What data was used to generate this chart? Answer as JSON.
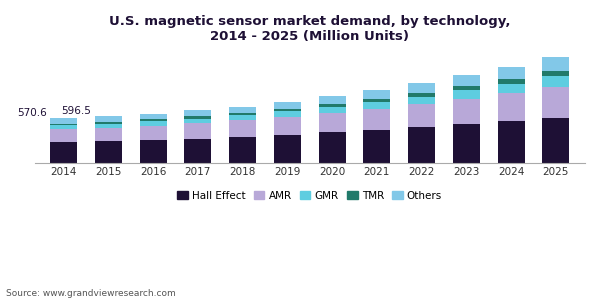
{
  "title": "U.S. magnetic sensor market demand, by technology,\n2014 - 2025 (Million Units)",
  "source": "Source: www.grandviewresearch.com",
  "years": [
    2014,
    2015,
    2016,
    2017,
    2018,
    2019,
    2020,
    2021,
    2022,
    2023,
    2024,
    2025
  ],
  "annotations": {
    "2014": "570.6",
    "2015": "596.5"
  },
  "segments": {
    "Hall Effect": {
      "color": "#1e1035",
      "values": [
        268,
        280,
        296,
        314,
        338,
        366,
        396,
        428,
        462,
        498,
        536,
        578
      ]
    },
    "AMR": {
      "color": "#b8a8d8",
      "values": [
        164,
        172,
        182,
        194,
        208,
        224,
        244,
        266,
        292,
        322,
        356,
        394
      ]
    },
    "GMR": {
      "color": "#5ecde0",
      "values": [
        52,
        54,
        57,
        61,
        65,
        71,
        78,
        86,
        96,
        108,
        121,
        136
      ]
    },
    "TMR": {
      "color": "#217a6a",
      "values": [
        22,
        23,
        25,
        27,
        29,
        33,
        37,
        42,
        48,
        55,
        63,
        72
      ]
    },
    "Others": {
      "color": "#82c8e8",
      "values": [
        65,
        68,
        72,
        77,
        83,
        91,
        100,
        111,
        124,
        139,
        156,
        176
      ]
    }
  },
  "bar_width": 0.6,
  "background_color": "#ffffff",
  "title_color": "#1e1035",
  "title_fontsize": 9.5,
  "legend_fontsize": 7.5,
  "source_fontsize": 6.5,
  "ylim": [
    0,
    1430
  ],
  "axis_color": "#aaaaaa"
}
